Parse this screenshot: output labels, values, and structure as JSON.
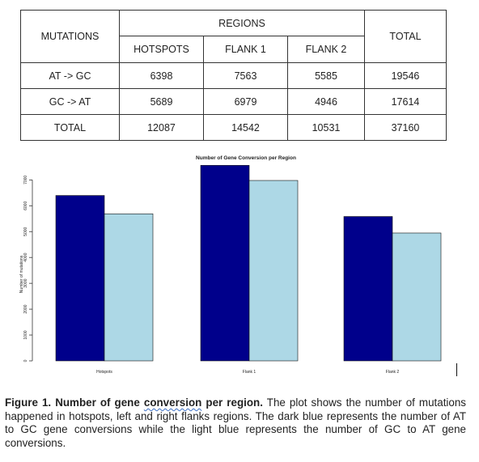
{
  "table": {
    "mutations_header": "MUTATIONS",
    "regions_header": "REGIONS",
    "total_header": "TOTAL",
    "columns": [
      "HOTSPOTS",
      "FLANK 1",
      "FLANK 2"
    ],
    "rows": [
      {
        "label": "AT -> GC",
        "values": [
          "6398",
          "7563",
          "5585"
        ],
        "total": "19546"
      },
      {
        "label": "GC -> AT",
        "values": [
          "5689",
          "6979",
          "4946"
        ],
        "total": "17614"
      },
      {
        "label": "TOTAL",
        "values": [
          "12087",
          "14542",
          "10531"
        ],
        "total": "37160"
      }
    ]
  },
  "chart_data": {
    "type": "bar",
    "title": "Number of Gene Conversion per Region",
    "xlabel": "",
    "ylabel": "Number of mutations",
    "categories": [
      "Hotspots",
      "Flank 1",
      "Flank 2"
    ],
    "series": [
      {
        "name": "AT to GC",
        "color": "#00008b",
        "values": [
          6398,
          7563,
          5585
        ]
      },
      {
        "name": "GC to AT",
        "color": "#add8e6",
        "values": [
          5689,
          6979,
          4946
        ]
      }
    ],
    "ylim": [
      0,
      7700
    ],
    "yticks": [
      "0",
      "1000",
      "2000",
      "3000",
      "4000",
      "5000",
      "6000",
      "7000"
    ],
    "ytick_values": [
      0,
      1000,
      2000,
      3000,
      4000,
      5000,
      6000,
      7000
    ]
  },
  "caption": {
    "label": "Figure 1. Number of gene",
    "underlined": "conversion",
    "bold_rest": "per region.",
    "text": "The plot shows the number of mutations happened in hotspots, left and right flanks regions. The dark blue represents the number of AT to GC gene conversions while the light blue represents the number of GC to AT gene conversions."
  }
}
